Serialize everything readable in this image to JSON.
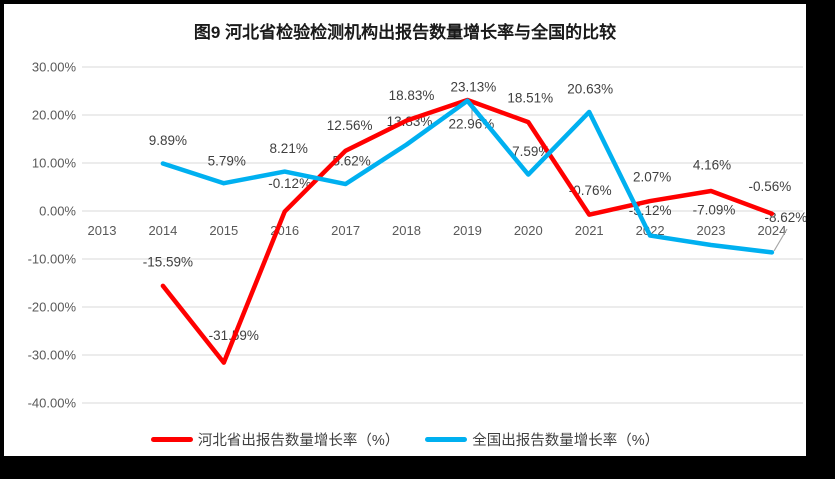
{
  "chart_data": {
    "type": "line",
    "title": "图9 河北省检验检测机构出报告数量增长率与全国的比较",
    "categories": [
      "2013",
      "2014",
      "2015",
      "2016",
      "2017",
      "2018",
      "2019",
      "2020",
      "2021",
      "2022",
      "2023",
      "2024"
    ],
    "series": [
      {
        "name": "河北省出报告数量增长率（%）",
        "color": "#FF0000",
        "values": [
          null,
          -15.59,
          -31.59,
          -0.12,
          12.56,
          18.83,
          23.13,
          18.51,
          -0.76,
          2.07,
          4.16,
          -0.56
        ],
        "labels": [
          null,
          "-15.59%",
          "-31.59%",
          "-0.12%",
          "12.56%",
          "18.83%",
          "23.13%",
          "18.51%",
          "-0.76%",
          "2.07%",
          "4.16%",
          "-0.56%"
        ]
      },
      {
        "name": "全国出报告数量增长率（%）",
        "color": "#00B0F0",
        "values": [
          null,
          9.89,
          5.79,
          8.21,
          5.62,
          13.83,
          22.96,
          7.59,
          20.63,
          -5.12,
          -7.09,
          -8.62
        ],
        "labels": [
          null,
          "9.89%",
          "5.79%",
          "8.21%",
          "5.62%",
          "13.83%",
          "22.96%",
          "7.59%",
          "20.63%",
          "-5.12%",
          "-7.09%",
          "-8.62%"
        ]
      }
    ],
    "y_axis": {
      "min": -40,
      "max": 30,
      "step": 10,
      "ticks": [
        "30.00%",
        "20.00%",
        "10.00%",
        "0.00%",
        "-10.00%",
        "-20.00%",
        "-30.00%",
        "-40.00%"
      ]
    },
    "xlabel": "",
    "ylabel": "",
    "grid": true,
    "legend_position": "bottom",
    "layout_hints": {
      "label_offsets": [
        [
          null,
          [
            5,
            -24
          ],
          [
            10,
            -27
          ],
          [
            5,
            -28
          ],
          [
            4,
            -25
          ],
          [
            5,
            -25
          ],
          [
            6,
            -13
          ],
          [
            2,
            -24
          ],
          [
            1,
            -24
          ],
          [
            2,
            -24
          ],
          [
            1,
            -26
          ],
          [
            -2,
            -27
          ]
        ],
        [
          null,
          [
            5,
            -23
          ],
          [
            3,
            -22
          ],
          [
            4,
            -23
          ],
          [
            6,
            -23
          ],
          [
            3,
            -23
          ],
          [
            4,
            23
          ],
          [
            3,
            -23
          ],
          [
            1,
            -23
          ],
          [
            0,
            -25
          ],
          [
            3,
            -35
          ],
          [
            14,
            -35
          ]
        ]
      ],
      "leader_lines": [
        [
          472,
          106,
          472,
          119
        ],
        [
          787,
          229,
          774,
          251
        ]
      ],
      "colors": {
        "gridline": "#D9D9D9",
        "axis_text": "#595959",
        "data_label_text": "#404040",
        "leader": "#A6A6A6",
        "border": "#000000",
        "background": "#FFFFFF"
      }
    }
  }
}
